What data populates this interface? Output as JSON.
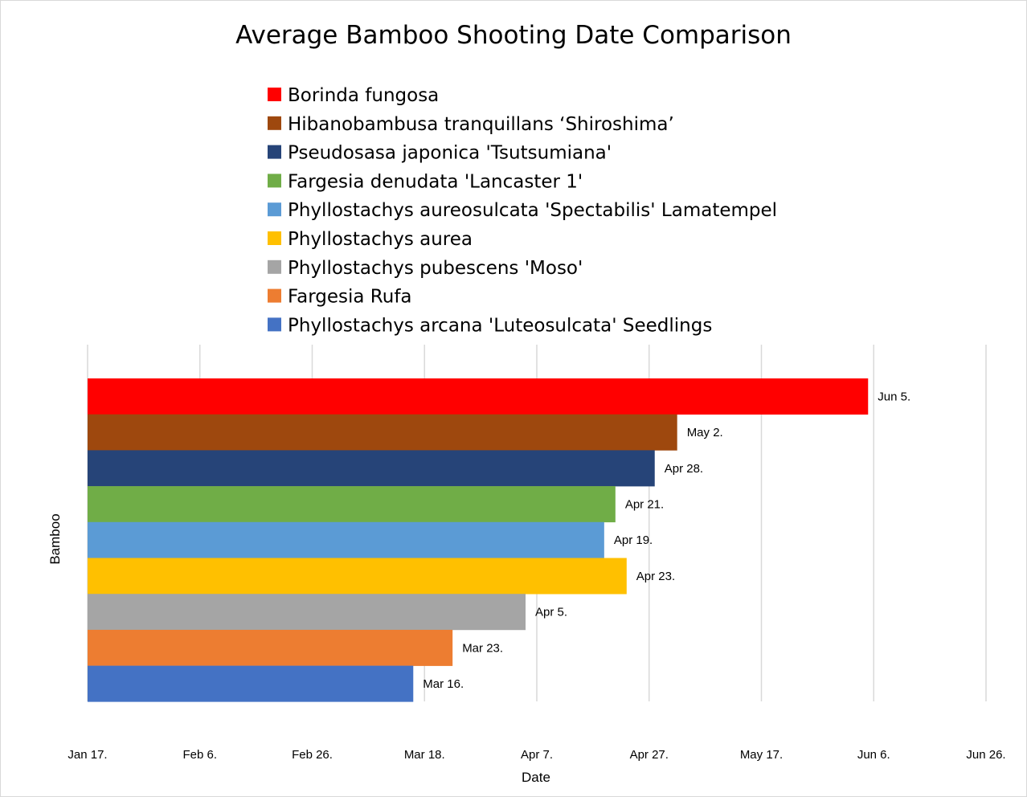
{
  "chart_data": {
    "type": "bar",
    "orientation": "horizontal",
    "title": "Average Bamboo Shooting Date Comparison",
    "xlabel": "Date",
    "ylabel": "Bamboo",
    "x_ticks": [
      "Jan 17.",
      "Feb 6.",
      "Feb 26.",
      "Mar 18.",
      "Apr 7.",
      "Apr 27.",
      "May 17.",
      "Jun 6.",
      "Jun 26."
    ],
    "xlim": [
      "Jan 17",
      "Jun 26"
    ],
    "grid": true,
    "legend_position": "top",
    "categories": [
      "Borinda fungosa",
      "Hibanobambusa tranquillans ‘Shiroshima’",
      "Pseudosasa japonica 'Tsutsumiana'",
      "Fargesia denudata 'Lancaster 1'",
      "Phyllostachys aureosulcata 'Spectabilis' Lamatempel",
      "Phyllostachys aurea",
      "Phyllostachys pubescens 'Moso'",
      "Fargesia Rufa",
      "Phyllostachys arcana 'Luteosulcata' Seedlings"
    ],
    "values": [
      "Jun 5",
      "May 2",
      "Apr 28",
      "Apr 21",
      "Apr 19",
      "Apr 23",
      "Apr 5",
      "Mar 23",
      "Mar 16"
    ],
    "data_labels": [
      "Jun 5.",
      "May 2.",
      "Apr 28.",
      "Apr 21.",
      "Apr 19.",
      "Apr 23.",
      "Apr 5.",
      "Mar 23.",
      "Mar 16."
    ],
    "colors": [
      "#ff0000",
      "#9e480e",
      "#264478",
      "#70ad47",
      "#5b9bd5",
      "#ffc000",
      "#a5a5a5",
      "#ed7d31",
      "#4472c4"
    ]
  }
}
